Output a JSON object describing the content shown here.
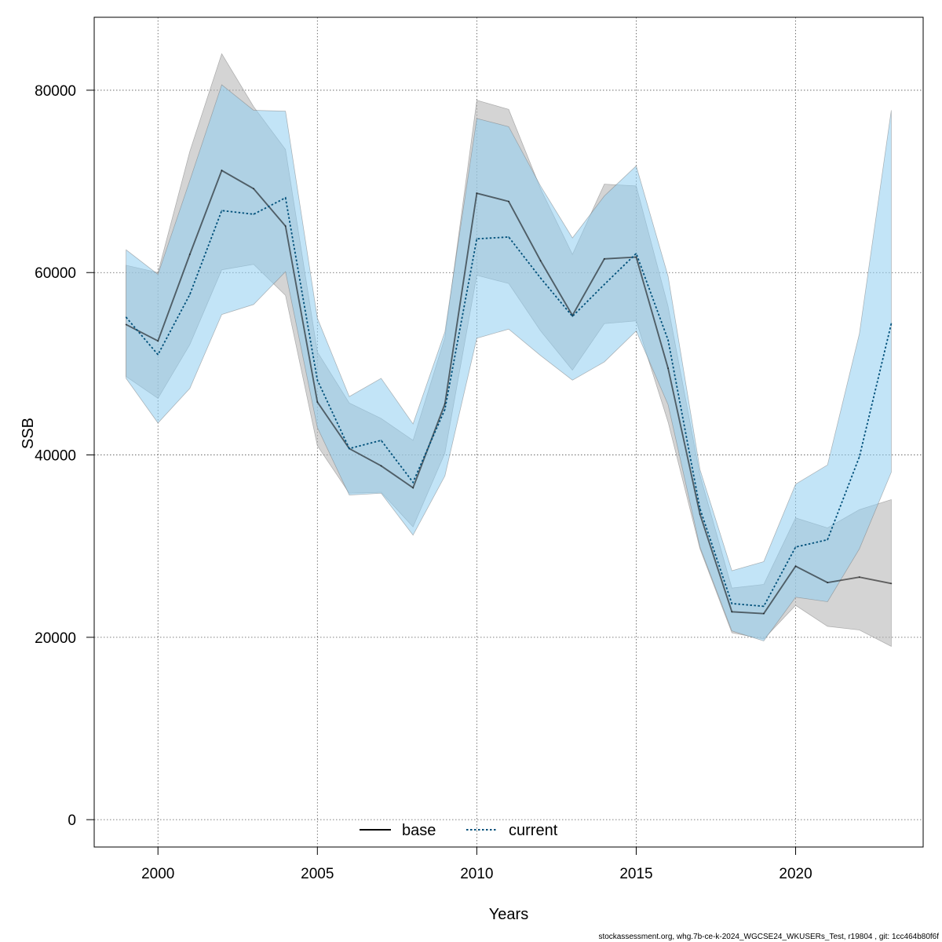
{
  "chart_data": {
    "type": "line",
    "xlabel": "Years",
    "ylabel": "SSB",
    "xlim": [
      1998,
      2024
    ],
    "ylim": [
      -3000,
      88000
    ],
    "x_ticks": [
      2000,
      2005,
      2010,
      2015,
      2020
    ],
    "y_ticks": [
      0,
      20000,
      40000,
      60000,
      80000
    ],
    "x_tick_labels": [
      "2000",
      "2005",
      "2010",
      "2015",
      "2020"
    ],
    "y_tick_labels": [
      "0",
      "20000",
      "40000",
      "60000",
      "80000"
    ],
    "grid": true,
    "legend_position": "bottom",
    "x": [
      1999,
      2000,
      2001,
      2002,
      2003,
      2004,
      2005,
      2006,
      2007,
      2008,
      2009,
      2010,
      2011,
      2012,
      2013,
      2014,
      2015,
      2016,
      2017,
      2018,
      2019,
      2020,
      2021,
      2022,
      2023
    ],
    "series": [
      {
        "name": "base",
        "line_style": "solid",
        "line_color": "#000000",
        "band_color": "#b0b0b0",
        "values": [
          54300,
          52500,
          62000,
          71200,
          69200,
          65100,
          45800,
          40700,
          38800,
          36400,
          45600,
          68700,
          67800,
          61300,
          55300,
          61500,
          61700,
          49500,
          33500,
          22800,
          22600,
          27800,
          26000,
          26600,
          25900
        ],
        "lower": [
          48600,
          46200,
          52100,
          60300,
          60900,
          57500,
          41000,
          35800,
          35900,
          32100,
          40200,
          59700,
          58800,
          53600,
          49300,
          54400,
          54700,
          43600,
          29700,
          20500,
          19800,
          23500,
          21200,
          20800,
          19000
        ],
        "upper": [
          60800,
          60000,
          73300,
          84000,
          78200,
          73500,
          51300,
          45700,
          44000,
          41600,
          52900,
          78900,
          77900,
          69200,
          62000,
          69700,
          69500,
          56300,
          37800,
          25400,
          25800,
          33100,
          32000,
          34000,
          35100
        ]
      },
      {
        "name": "current",
        "line_style": "dotted",
        "line_color": "#00507a",
        "band_color": "#8fcdf0",
        "values": [
          55100,
          51000,
          57600,
          66800,
          66400,
          68200,
          48200,
          40700,
          41600,
          37000,
          45000,
          63700,
          63900,
          59400,
          55200,
          58700,
          62100,
          52600,
          34100,
          23700,
          23400,
          29900,
          30700,
          39800,
          54400
        ],
        "lower": [
          48400,
          43500,
          47300,
          55400,
          56500,
          60100,
          43000,
          35600,
          35800,
          31200,
          37700,
          52800,
          53800,
          50900,
          48200,
          50200,
          53600,
          45500,
          29900,
          20700,
          19600,
          24400,
          23900,
          29700,
          38100
        ],
        "upper": [
          62500,
          59800,
          70100,
          80600,
          77800,
          77700,
          55000,
          46400,
          48400,
          43400,
          53500,
          76900,
          76000,
          69500,
          63800,
          68400,
          71700,
          59600,
          38400,
          27300,
          28300,
          36800,
          38900,
          53300,
          77800
        ]
      }
    ]
  },
  "footer": {
    "text": "stockassessment.org, whg.7b-ce-k-2024_WGCSE24_WKUSERs_Test, r19804 , git: 1cc464b80f6f"
  }
}
